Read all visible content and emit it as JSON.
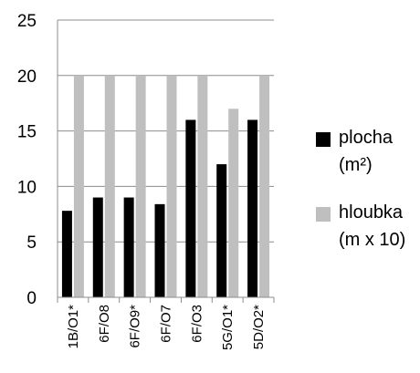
{
  "chart_data": {
    "type": "bar",
    "categories": [
      "1B/O1*",
      "6F/O8",
      "6F/O9*",
      "6F/O7",
      "6F/O3",
      "5G/O1*",
      "5D/O2*"
    ],
    "series": [
      {
        "name": "plocha (m²)",
        "label_lines": [
          "plocha",
          "(m²)"
        ],
        "color": "#000000",
        "values": [
          7.8,
          9,
          9,
          8.4,
          16,
          12,
          16
        ]
      },
      {
        "name": "hloubka (m x 10)",
        "label_lines": [
          "hloubka",
          "(m x 10)"
        ],
        "color": "#bfbfbf",
        "values": [
          20,
          20,
          20,
          20,
          20,
          17,
          20
        ]
      }
    ],
    "yticks": [
      "0",
      "5",
      "10",
      "15",
      "20",
      "25"
    ],
    "ylim": [
      0,
      25
    ],
    "grid": "horizontal major gridlines",
    "legend_position": "right"
  }
}
